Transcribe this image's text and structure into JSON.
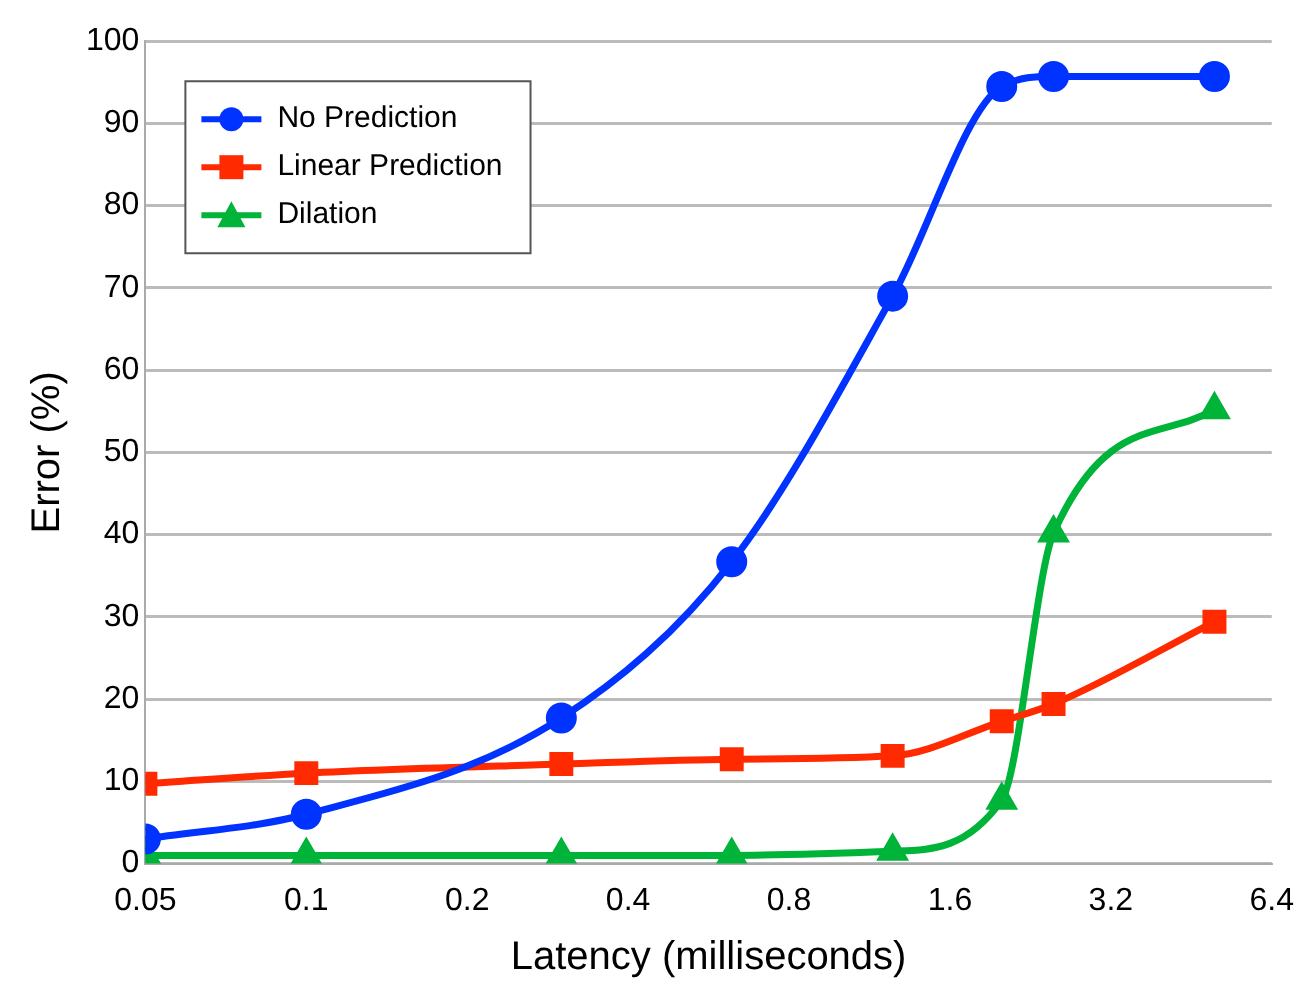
{
  "chart_data": {
    "type": "line",
    "xlabel": "Latency (milliseconds)",
    "ylabel": "Error (%)",
    "log": "x",
    "xlim": [
      0.05,
      6.4
    ],
    "xticks": [
      0.05,
      0.1,
      0.2,
      0.4,
      0.8,
      1.6,
      3.2,
      6.4
    ],
    "ylim": [
      0,
      100
    ],
    "yticks": [
      0,
      10,
      20,
      30,
      40,
      50,
      60,
      70,
      80,
      90,
      100
    ],
    "grid": "y",
    "legend": "top left",
    "x": [
      0.05,
      0.1,
      0.3,
      0.625,
      1.25,
      2,
      2.5,
      5
    ],
    "series": [
      {
        "name": "No Prediction",
        "color": "#0033ff",
        "marker": "circle",
        "values": [
          3,
          6,
          17.7,
          36.7,
          69,
          94.5,
          95.7,
          95.7
        ]
      },
      {
        "name": "Linear Prediction",
        "color": "#ff2a00",
        "marker": "square",
        "values": [
          9.7,
          11,
          12.1,
          12.7,
          13.1,
          17.3,
          19.4,
          29.4
        ]
      },
      {
        "name": "Dilation",
        "color": "#00b339",
        "marker": "triangle",
        "values": [
          1,
          1,
          1,
          1,
          1.5,
          7.7,
          40.2,
          55.2
        ]
      }
    ]
  }
}
